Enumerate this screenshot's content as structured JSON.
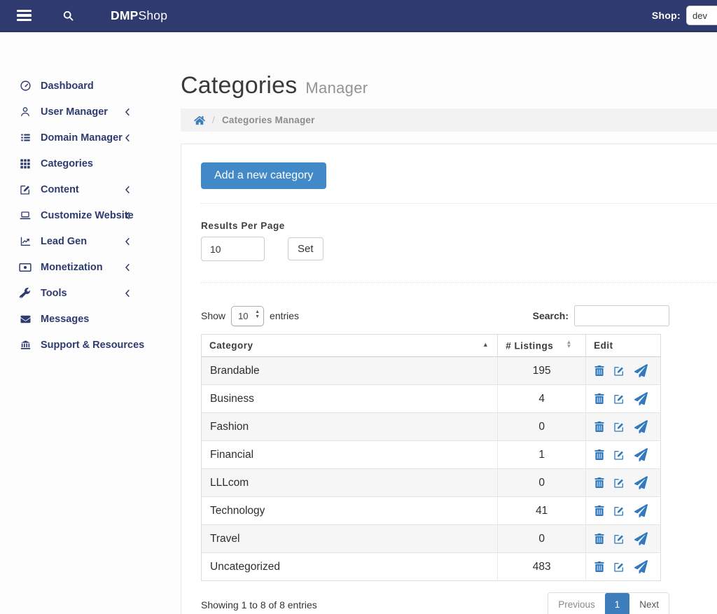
{
  "navbar": {
    "brand": {
      "bold": "DMP",
      "rest": "Shop"
    },
    "shop_label": "Shop:",
    "shop_selected": "dev"
  },
  "page": {
    "title": "Categories",
    "subtitle": "Manager"
  },
  "breadcrumb": {
    "separator": "/",
    "current": "Categories Manager"
  },
  "sidebar": {
    "items": [
      {
        "label": "Dashboard",
        "icon": "dashboard",
        "expandable": false
      },
      {
        "label": "User Manager",
        "icon": "user",
        "expandable": true
      },
      {
        "label": "Domain Manager",
        "icon": "list",
        "expandable": true
      },
      {
        "label": "Categories",
        "icon": "grid",
        "expandable": false
      },
      {
        "label": "Content",
        "icon": "pen-square",
        "expandable": true
      },
      {
        "label": "Customize Website",
        "icon": "laptop",
        "expandable": true
      },
      {
        "label": "Lead Gen",
        "icon": "chart-line",
        "expandable": true
      },
      {
        "label": "Monetization",
        "icon": "money-bill",
        "expandable": true
      },
      {
        "label": "Tools",
        "icon": "wrench",
        "expandable": true
      },
      {
        "label": "Messages",
        "icon": "envelope",
        "expandable": false
      },
      {
        "label": "Support & Resources",
        "icon": "bank",
        "expandable": false
      }
    ]
  },
  "toolbar": {
    "add_button": "Add a new category",
    "results_per_page_label": "Results Per Page",
    "results_per_page_value": "10",
    "set_button": "Set"
  },
  "datatable": {
    "show_label": "Show",
    "page_length": "10",
    "entries_label": "entries",
    "search_label": "Search:",
    "search_value": "",
    "columns": [
      {
        "label": "Category",
        "sort": "asc"
      },
      {
        "label": "# Listings",
        "sort": "both"
      },
      {
        "label": "Edit",
        "sort": "none"
      }
    ],
    "rows": [
      {
        "category": "Brandable",
        "listings": "195"
      },
      {
        "category": "Business",
        "listings": "4"
      },
      {
        "category": "Fashion",
        "listings": "0"
      },
      {
        "category": "Financial",
        "listings": "1"
      },
      {
        "category": "LLLcom",
        "listings": "0"
      },
      {
        "category": "Technology",
        "listings": "41"
      },
      {
        "category": "Travel",
        "listings": "0"
      },
      {
        "category": "Uncategorized",
        "listings": "483"
      }
    ],
    "info": "Showing 1 to 8 of 8 entries",
    "pagination": {
      "previous": "Previous",
      "current": "1",
      "next": "Next"
    }
  },
  "colors": {
    "navbar_bg": "#2f3b6e",
    "sidebar_text": "#2e3b6e",
    "accent_blue": "#4189c7",
    "icon_blue": "#3279bd",
    "active_page_bg": "#3d7dbb",
    "breadcrumb_bg": "#f2f2f2"
  }
}
